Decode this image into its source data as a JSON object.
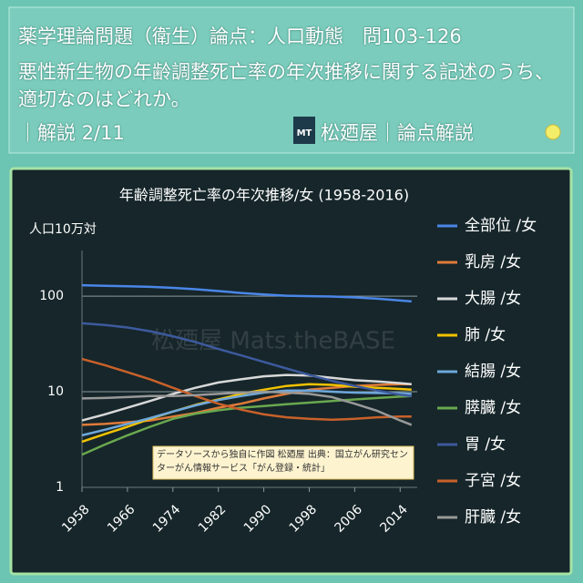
{
  "header": {
    "question": "薬学理論問題（衛生）論点：人口動態　問103-126",
    "statement": "悪性新生物の年齢調整死亡率の年次推移に関する記述のうち、適切なのはどれか。",
    "page": "｜解説 2/11",
    "logo": "MT",
    "brand": "松廼屋｜論点解説"
  },
  "chart_data": {
    "type": "line",
    "title": "年齢調整死亡率の年次推移/女 (1958-2016)",
    "y_label": "人口10万対",
    "annotation": "データソースから独自に作図 松廼屋 出典：国立がん研究センターがん情報サービス「がん登録・統計」",
    "watermark": "松廼屋 Mats.theBASE",
    "log_scale": true,
    "x": [
      1958,
      1962,
      1966,
      1970,
      1974,
      1978,
      1982,
      1986,
      1990,
      1994,
      1998,
      2002,
      2006,
      2010,
      2014,
      2016
    ],
    "xlim": [
      1958,
      2017
    ],
    "xticks": [
      1958,
      1966,
      1974,
      1982,
      1990,
      1998,
      2006,
      2014
    ],
    "ylim": [
      1,
      300
    ],
    "yticks": [
      100,
      10,
      1
    ],
    "series": [
      {
        "name": "全部位 /女",
        "color": "#4a86e8",
        "values": [
          130,
          128,
          127,
          125,
          122,
          118,
          113,
          108,
          104,
          101,
          100,
          99,
          97,
          94,
          90,
          88
        ]
      },
      {
        "name": "乳房 /女",
        "color": "#e07b39",
        "values": [
          4.5,
          4.6,
          4.8,
          5,
          5.5,
          6,
          6.8,
          7.5,
          8.5,
          9.5,
          10.5,
          11,
          11.5,
          11.8,
          12,
          12
        ]
      },
      {
        "name": "大腸 /女",
        "color": "#d9d9d9",
        "values": [
          5,
          5.8,
          6.8,
          8,
          9.5,
          11,
          12.5,
          13.5,
          14.5,
          15,
          14.8,
          14,
          13.2,
          12.8,
          12.3,
          12
        ]
      },
      {
        "name": "肺 /女",
        "color": "#f2c200",
        "values": [
          3,
          3.6,
          4.3,
          5.2,
          6.2,
          7.3,
          8.3,
          9.5,
          10.5,
          11.5,
          12,
          11.8,
          11.3,
          11,
          10.7,
          10.5
        ]
      },
      {
        "name": "結腸 /女",
        "color": "#6fa8dc",
        "values": [
          3.5,
          4,
          4.6,
          5.3,
          6.2,
          7.2,
          8.2,
          9,
          9.8,
          10.3,
          10.3,
          10,
          9.8,
          9.7,
          9.6,
          9.5
        ]
      },
      {
        "name": "膵臓 /女",
        "color": "#6aa84f",
        "values": [
          2.2,
          2.8,
          3.5,
          4.3,
          5.2,
          5.9,
          6.4,
          6.8,
          7.1,
          7.4,
          7.7,
          8,
          8.3,
          8.6,
          8.9,
          9
        ]
      },
      {
        "name": "胃 /女",
        "color": "#3d5a9e",
        "values": [
          52,
          50,
          47,
          43,
          38,
          33,
          28,
          24,
          20.5,
          17.5,
          15,
          13,
          11.5,
          10.3,
          9.3,
          9
        ]
      },
      {
        "name": "子宮 /女",
        "color": "#c8612a",
        "values": [
          22,
          19,
          16,
          13.5,
          11,
          9,
          7.5,
          6.5,
          5.8,
          5.4,
          5.2,
          5.1,
          5.2,
          5.4,
          5.5,
          5.5
        ]
      },
      {
        "name": "肝臓 /女",
        "color": "#999999",
        "values": [
          8.5,
          8.6,
          8.8,
          9,
          9,
          9.2,
          9.5,
          9.8,
          10,
          9.8,
          9.5,
          8.8,
          7.5,
          6.3,
          5,
          4.5
        ]
      }
    ]
  }
}
